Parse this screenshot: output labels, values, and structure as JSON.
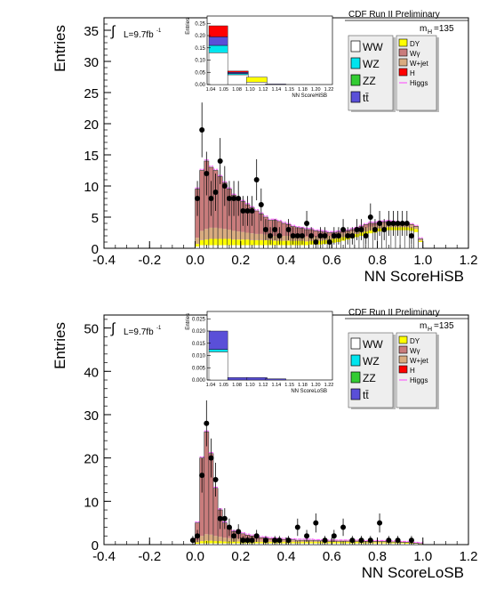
{
  "colors": {
    "WW": "#ffffff",
    "WZ": "#00e5ee",
    "ZZ": "#33cc33",
    "ttbar": "#5a4fd8",
    "DY": "#ffff00",
    "Wgamma": "#c97c7c",
    "Wjet": "#d9ac80",
    "H": "#ff0000",
    "Higgs": "#ff44ff",
    "data": "#000000"
  },
  "chart_data": [
    {
      "type": "histogram",
      "id": "hisb",
      "header": "CDF Run II Preliminary",
      "xlabel": "NN ScoreHiSB",
      "ylabel": "Entries",
      "xlim": [
        -0.4,
        1.2
      ],
      "ylim": [
        0,
        37
      ],
      "xticks": [
        "-0.4",
        "-0.2",
        "0.0",
        "0.2",
        "0.4",
        "0.6",
        "0.8",
        "1.0",
        "1.2"
      ],
      "yticks": [
        "0",
        "5",
        "10",
        "15",
        "20",
        "25",
        "30",
        "35"
      ],
      "lumi": "L=9.7fb",
      "lumi_sup": "-1",
      "mass": "m",
      "mass_sub": "H",
      "mass_val": "=135",
      "legend_left": [
        {
          "label": "WW",
          "key": "WW"
        },
        {
          "label": "WZ",
          "key": "WZ"
        },
        {
          "label": "ZZ",
          "key": "ZZ"
        },
        {
          "label": "tt̄",
          "key": "ttbar"
        }
      ],
      "legend_right": [
        {
          "label": "DY",
          "key": "DY"
        },
        {
          "label": "Wγ",
          "key": "Wgamma"
        },
        {
          "label": "W+jet",
          "key": "Wjet"
        },
        {
          "label": "H",
          "key": "H"
        },
        {
          "label": "Higgs",
          "key": "Higgs"
        }
      ],
      "bin_start": 0.0,
      "bin_width": 0.02,
      "stack_totals": [
        9.5,
        12.5,
        14,
        13,
        12.5,
        11.5,
        10.5,
        9.5,
        8.5,
        8,
        7.5,
        7,
        6.5,
        6,
        5.5,
        5,
        4.5,
        4.5,
        4.3,
        4,
        3.8,
        3.5,
        3.3,
        3.2,
        3,
        3,
        2.8,
        2.7,
        2.6,
        2.5,
        2.5,
        2.6,
        2.7,
        2.8,
        3,
        3.2,
        3.5,
        3.8,
        4,
        4,
        4.2,
        4.2,
        4.3,
        4.2,
        4.1,
        4,
        4,
        3.8,
        3.5,
        1.5
      ],
      "wgamma_band": [
        1,
        1.5,
        1.7,
        1.8,
        1.8,
        1.7,
        1.6,
        1.5,
        1.4,
        1.3,
        1.2,
        1.1,
        1.1,
        1,
        1,
        0.9,
        0.9,
        0.8,
        0.8,
        0.8,
        0.8,
        0.8,
        0.7,
        0.7,
        0.7,
        0.7,
        0.6,
        0.6,
        0.6,
        0.6,
        0.6,
        0.6,
        0.6,
        0.6,
        0.6,
        0.6,
        0.6,
        0.6,
        0.6,
        0.6,
        0.6,
        0.6,
        0.6,
        0.6,
        0.6,
        0.6,
        0.6,
        0.6,
        0.5,
        0.3
      ],
      "dy_band": [
        0.4,
        0.8,
        0.9,
        1,
        1,
        1,
        1,
        1,
        0.9,
        0.9,
        0.9,
        0.9,
        0.8,
        0.8,
        0.8,
        0.8,
        0.8,
        0.7,
        0.7,
        0.7,
        0.7,
        0.7,
        0.7,
        0.7,
        0.6,
        0.6,
        0.6,
        0.6,
        0.6,
        0.6,
        0.6,
        0.6,
        0.6,
        0.5,
        0.5,
        0.5,
        0.5,
        0.5,
        0.5,
        0.5,
        0.5,
        0.5,
        0.5,
        0.5,
        0.5,
        0.5,
        0.5,
        0.5,
        0.5,
        0.2
      ],
      "ww_band": [
        0.3,
        0.5,
        0.5,
        0.5,
        0.5,
        0.5,
        0.5,
        0.5,
        0.5,
        0.5,
        0.5,
        0.5,
        0.5,
        0.5,
        0.5,
        0.5,
        0.5,
        0.5,
        0.5,
        0.5,
        0.5,
        0.5,
        0.5,
        0.5,
        0.5,
        0.6,
        0.6,
        0.6,
        0.7,
        0.8,
        0.9,
        1,
        1.2,
        1.4,
        1.6,
        1.8,
        2,
        2.2,
        2.4,
        2.5,
        2.7,
        2.8,
        2.9,
        2.9,
        2.9,
        2.9,
        2.9,
        2.8,
        2.6,
        1
      ],
      "data_points": [
        {
          "x": 0.01,
          "y": 8,
          "err": 2.8
        },
        {
          "x": 0.03,
          "y": 19,
          "err": 4.4
        },
        {
          "x": 0.05,
          "y": 12,
          "err": 3.5
        },
        {
          "x": 0.07,
          "y": 8,
          "err": 2.8
        },
        {
          "x": 0.09,
          "y": 9,
          "err": 3
        },
        {
          "x": 0.11,
          "y": 14,
          "err": 3.7
        },
        {
          "x": 0.13,
          "y": 10,
          "err": 3.2
        },
        {
          "x": 0.15,
          "y": 8,
          "err": 2.8
        },
        {
          "x": 0.17,
          "y": 8,
          "err": 2.8
        },
        {
          "x": 0.19,
          "y": 8,
          "err": 2.8
        },
        {
          "x": 0.21,
          "y": 6,
          "err": 2.4
        },
        {
          "x": 0.23,
          "y": 6,
          "err": 2.4
        },
        {
          "x": 0.25,
          "y": 6,
          "err": 2.4
        },
        {
          "x": 0.27,
          "y": 11,
          "err": 3.3
        },
        {
          "x": 0.29,
          "y": 7,
          "err": 2.6
        },
        {
          "x": 0.31,
          "y": 3,
          "err": 1.7
        },
        {
          "x": 0.33,
          "y": 2,
          "err": 1.4
        },
        {
          "x": 0.35,
          "y": 3,
          "err": 1.7
        },
        {
          "x": 0.37,
          "y": 2,
          "err": 1.4
        },
        {
          "x": 0.41,
          "y": 3,
          "err": 1.7
        },
        {
          "x": 0.43,
          "y": 2,
          "err": 1.4
        },
        {
          "x": 0.45,
          "y": 2,
          "err": 1.4
        },
        {
          "x": 0.47,
          "y": 2,
          "err": 1.4
        },
        {
          "x": 0.49,
          "y": 4,
          "err": 2
        },
        {
          "x": 0.51,
          "y": 2,
          "err": 1.4
        },
        {
          "x": 0.53,
          "y": 1,
          "err": 1
        },
        {
          "x": 0.55,
          "y": 2,
          "err": 1.4
        },
        {
          "x": 0.57,
          "y": 2,
          "err": 1.4
        },
        {
          "x": 0.59,
          "y": 1,
          "err": 1
        },
        {
          "x": 0.61,
          "y": 2,
          "err": 1.4
        },
        {
          "x": 0.63,
          "y": 2,
          "err": 1.4
        },
        {
          "x": 0.65,
          "y": 3,
          "err": 1.7
        },
        {
          "x": 0.67,
          "y": 2,
          "err": 1.4
        },
        {
          "x": 0.69,
          "y": 2,
          "err": 1.4
        },
        {
          "x": 0.71,
          "y": 3,
          "err": 1.7
        },
        {
          "x": 0.73,
          "y": 3,
          "err": 1.7
        },
        {
          "x": 0.75,
          "y": 2,
          "err": 1.4
        },
        {
          "x": 0.77,
          "y": 5,
          "err": 2.2
        },
        {
          "x": 0.79,
          "y": 3,
          "err": 1.7
        },
        {
          "x": 0.81,
          "y": 4,
          "err": 2
        },
        {
          "x": 0.83,
          "y": 3,
          "err": 1.7
        },
        {
          "x": 0.85,
          "y": 4,
          "err": 2
        },
        {
          "x": 0.87,
          "y": 4,
          "err": 2
        },
        {
          "x": 0.89,
          "y": 4,
          "err": 2
        },
        {
          "x": 0.91,
          "y": 4,
          "err": 2
        },
        {
          "x": 0.93,
          "y": 4,
          "err": 2
        },
        {
          "x": 0.95,
          "y": 2,
          "err": 1.4
        }
      ],
      "inset": {
        "ylabel": "Entries",
        "xlabel": "NN ScoreHiSB",
        "yticks": [
          "0.00",
          "0.05",
          "0.10",
          "0.15",
          "0.20",
          "0.25"
        ],
        "ylim": [
          0,
          0.28
        ],
        "xticks": [
          "1.04",
          "1.05",
          "1.08",
          "1.10",
          "1.12",
          "1.14",
          "1.15",
          "1.18",
          "1.20",
          "1.22"
        ],
        "bins": [
          {
            "WW": 0.13,
            "WZ": 0.03,
            "ZZ": 0.0,
            "ttbar": 0.035,
            "DY": 0.0,
            "Wgamma": 0.0,
            "Wjet": 0.0,
            "H": 0.045,
            "tone": "#d9ac80"
          },
          {
            "WW": 0.04,
            "WZ": 0.005,
            "ZZ": 0.0,
            "ttbar": 0.005,
            "DY": 0.0,
            "Wgamma": 0.0,
            "Wjet": 0.0,
            "H": 0.005,
            "tone": "#d9ac80"
          },
          {
            "WW": 0.01,
            "WZ": 0.0,
            "ZZ": 0.0,
            "ttbar": 0.0,
            "DY": 0.02,
            "Wgamma": 0.0,
            "Wjet": 0.0,
            "H": 0.0,
            "tone": "#ffff00"
          },
          {
            "WW": 0.0,
            "WZ": 0.0,
            "ZZ": 0.0,
            "ttbar": 0.002,
            "DY": 0.0,
            "Wgamma": 0.0,
            "Wjet": 0.0,
            "H": 0.0,
            "tone": "#ffffff"
          },
          {
            "WW": 0.0,
            "WZ": 0.0,
            "ZZ": 0.0,
            "ttbar": 0.0,
            "DY": 0.0,
            "Wgamma": 0.0,
            "Wjet": 0.0,
            "H": 0.0,
            "tone": "#ffffff"
          }
        ]
      }
    },
    {
      "type": "histogram",
      "id": "losb",
      "header": "CDF Run II Preliminary",
      "xlabel": "NN ScoreLoSB",
      "ylabel": "Entries",
      "xlim": [
        -0.4,
        1.2
      ],
      "ylim": [
        0,
        53
      ],
      "xticks": [
        "-0.4",
        "-0.2",
        "0.0",
        "0.2",
        "0.4",
        "0.6",
        "0.8",
        "1.0",
        "1.2"
      ],
      "yticks": [
        "0",
        "10",
        "20",
        "30",
        "40",
        "50"
      ],
      "lumi": "L=9.7fb",
      "lumi_sup": "-1",
      "mass": "m",
      "mass_sub": "H",
      "mass_val": "=135",
      "legend_left": [
        {
          "label": "WW",
          "key": "WW"
        },
        {
          "label": "WZ",
          "key": "WZ"
        },
        {
          "label": "ZZ",
          "key": "ZZ"
        },
        {
          "label": "tt̄",
          "key": "ttbar"
        }
      ],
      "legend_right": [
        {
          "label": "DY",
          "key": "DY"
        },
        {
          "label": "Wγ",
          "key": "Wgamma"
        },
        {
          "label": "W+jet",
          "key": "Wjet"
        },
        {
          "label": "H",
          "key": "H"
        },
        {
          "label": "Higgs",
          "key": "Higgs"
        }
      ],
      "bin_start": 0.0,
      "bin_width": 0.02,
      "stack_totals": [
        5,
        20,
        26,
        21,
        13,
        8,
        5,
        4,
        3,
        3,
        2.5,
        2.2,
        2,
        1.8,
        1.6,
        1.5,
        1.4,
        1.3,
        1.2,
        1.2,
        1.1,
        1.1,
        1,
        1,
        1,
        1,
        0.9,
        0.9,
        0.9,
        0.8,
        0.8,
        0.8,
        0.8,
        0.8,
        0.8,
        0.8,
        0.8,
        0.7,
        0.7,
        0.7,
        0.7,
        0.7,
        0.6,
        0.6,
        0.6,
        0.5,
        0.5,
        0.4,
        0.3,
        0.2
      ],
      "wgamma_band": [
        0.5,
        1.2,
        1.5,
        1.4,
        1.2,
        1,
        0.9,
        0.8,
        0.7,
        0.7,
        0.6,
        0.6,
        0.5,
        0.5,
        0.5,
        0.5,
        0.4,
        0.4,
        0.4,
        0.4,
        0.4,
        0.4,
        0.3,
        0.3,
        0.3,
        0.3,
        0.3,
        0.3,
        0.3,
        0.3,
        0.3,
        0.3,
        0.3,
        0.3,
        0.3,
        0.3,
        0.3,
        0.3,
        0.3,
        0.3,
        0.3,
        0.3,
        0.2,
        0.2,
        0.2,
        0.2,
        0.2,
        0.2,
        0.1,
        0.1
      ],
      "dy_band": [
        0.3,
        0.5,
        0.6,
        0.6,
        0.5,
        0.5,
        0.4,
        0.4,
        0.4,
        0.4,
        0.3,
        0.3,
        0.3,
        0.3,
        0.3,
        0.3,
        0.3,
        0.3,
        0.3,
        0.3,
        0.3,
        0.3,
        0.3,
        0.3,
        0.3,
        0.3,
        0.3,
        0.3,
        0.3,
        0.3,
        0.3,
        0.3,
        0.3,
        0.3,
        0.3,
        0.3,
        0.3,
        0.2,
        0.2,
        0.2,
        0.2,
        0.2,
        0.2,
        0.2,
        0.2,
        0.2,
        0.2,
        0.1,
        0.1,
        0.1
      ],
      "ww_band": [
        0.2,
        0.3,
        0.3,
        0.3,
        0.3,
        0.3,
        0.3,
        0.3,
        0.3,
        0.3,
        0.3,
        0.3,
        0.3,
        0.3,
        0.3,
        0.3,
        0.3,
        0.3,
        0.3,
        0.3,
        0.3,
        0.3,
        0.3,
        0.3,
        0.3,
        0.3,
        0.3,
        0.3,
        0.3,
        0.3,
        0.3,
        0.3,
        0.3,
        0.3,
        0.3,
        0.3,
        0.3,
        0.3,
        0.3,
        0.3,
        0.3,
        0.3,
        0.3,
        0.3,
        0.3,
        0.3,
        0.2,
        0.2,
        0.2,
        0.1
      ],
      "data_points": [
        {
          "x": -0.01,
          "y": 1,
          "err": 1
        },
        {
          "x": 0.01,
          "y": 2,
          "err": 1.4
        },
        {
          "x": 0.03,
          "y": 16,
          "err": 4
        },
        {
          "x": 0.05,
          "y": 28,
          "err": 5.3
        },
        {
          "x": 0.07,
          "y": 20,
          "err": 4.5
        },
        {
          "x": 0.09,
          "y": 15,
          "err": 3.9
        },
        {
          "x": 0.11,
          "y": 6,
          "err": 2.4
        },
        {
          "x": 0.13,
          "y": 6,
          "err": 2.4
        },
        {
          "x": 0.15,
          "y": 4,
          "err": 2
        },
        {
          "x": 0.17,
          "y": 2,
          "err": 1.4
        },
        {
          "x": 0.19,
          "y": 3,
          "err": 1.7
        },
        {
          "x": 0.21,
          "y": 1,
          "err": 1
        },
        {
          "x": 0.23,
          "y": 1,
          "err": 1
        },
        {
          "x": 0.25,
          "y": 1,
          "err": 1
        },
        {
          "x": 0.27,
          "y": 2,
          "err": 1.4
        },
        {
          "x": 0.31,
          "y": 1,
          "err": 1
        },
        {
          "x": 0.35,
          "y": 1,
          "err": 1
        },
        {
          "x": 0.37,
          "y": 1,
          "err": 1
        },
        {
          "x": 0.41,
          "y": 1,
          "err": 1
        },
        {
          "x": 0.45,
          "y": 4,
          "err": 2
        },
        {
          "x": 0.49,
          "y": 2,
          "err": 1.4
        },
        {
          "x": 0.53,
          "y": 5,
          "err": 2.2
        },
        {
          "x": 0.57,
          "y": 1,
          "err": 1
        },
        {
          "x": 0.61,
          "y": 2,
          "err": 1.4
        },
        {
          "x": 0.65,
          "y": 4,
          "err": 2
        },
        {
          "x": 0.69,
          "y": 1,
          "err": 1
        },
        {
          "x": 0.73,
          "y": 1,
          "err": 1
        },
        {
          "x": 0.77,
          "y": 1,
          "err": 1
        },
        {
          "x": 0.81,
          "y": 5,
          "err": 2.2
        },
        {
          "x": 0.85,
          "y": 1,
          "err": 1
        },
        {
          "x": 0.89,
          "y": 1,
          "err": 1
        },
        {
          "x": 0.95,
          "y": 1,
          "err": 1
        }
      ],
      "inset": {
        "ylabel": "Entries",
        "xlabel": "NN ScoreLoSB",
        "yticks": [
          "0.000",
          "0.005",
          "0.010",
          "0.015",
          "0.020",
          "0.025"
        ],
        "ylim": [
          0,
          0.028
        ],
        "xticks": [
          "1.04",
          "1.05",
          "1.08",
          "1.10",
          "1.12",
          "1.14",
          "1.15",
          "1.18",
          "1.20",
          "1.22"
        ],
        "bins": [
          {
            "WW": 0.0115,
            "WZ": 0.001,
            "ZZ": 0.0,
            "ttbar": 0.0075,
            "DY": 0.0,
            "Wgamma": 0.0,
            "Wjet": 0.0,
            "H": 0.0,
            "tone": "#d9ac80"
          },
          {
            "WW": 0.0,
            "WZ": 0.0,
            "ZZ": 0.0,
            "ttbar": 0.001,
            "DY": 0.0,
            "Wgamma": 0.0,
            "Wjet": 0.0,
            "H": 0.0,
            "tone": "#ffffff"
          },
          {
            "WW": 0.0,
            "WZ": 0.0,
            "ZZ": 0.0,
            "ttbar": 0.001,
            "DY": 0.0,
            "Wgamma": 0.0,
            "Wjet": 0.0,
            "H": 0.0,
            "tone": "#ffffff"
          },
          {
            "WW": 0.0,
            "WZ": 0.0,
            "ZZ": 0.0,
            "ttbar": 0.0005,
            "DY": 0.0,
            "Wgamma": 0.0,
            "Wjet": 0.0,
            "H": 0.0,
            "tone": "#ffffff"
          },
          {
            "WW": 0.0,
            "WZ": 0.0,
            "ZZ": 0.0,
            "ttbar": 0.0,
            "DY": 0.0,
            "Wgamma": 0.0,
            "Wjet": 0.0,
            "H": 0.0,
            "tone": "#ffffff"
          }
        ]
      }
    }
  ]
}
